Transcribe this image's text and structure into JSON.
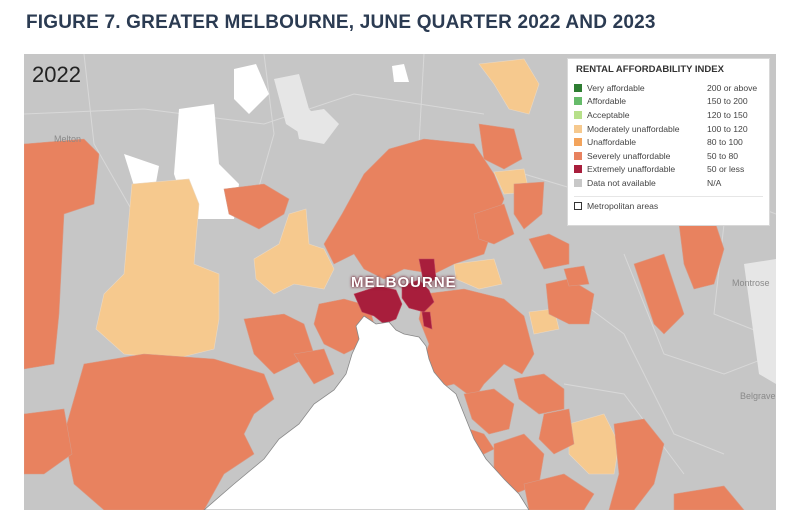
{
  "title": "FIGURE 7. GREATER MELBOURNE, JUNE QUARTER 2022 AND 2023",
  "map": {
    "year": "2022",
    "city_label": "MELBOURNE",
    "place_labels": [
      "Melton",
      "Montrose",
      "Belgrave"
    ]
  },
  "legend": {
    "title": "RENTAL AFFORDABILITY INDEX",
    "items": [
      {
        "label": "Very affordable",
        "range": "200 or above",
        "color": "#2e7d32"
      },
      {
        "label": "Affordable",
        "range": "150 to 200",
        "color": "#66bb6a"
      },
      {
        "label": "Acceptable",
        "range": "120 to 150",
        "color": "#b7e08a"
      },
      {
        "label": "Moderately unaffordable",
        "range": "100 to 120",
        "color": "#f6c98e"
      },
      {
        "label": "Unaffordable",
        "range": "80 to 100",
        "color": "#f3a45c"
      },
      {
        "label": "Severely unaffordable",
        "range": "50 to 80",
        "color": "#e8825f"
      },
      {
        "label": "Extremely unaffordable",
        "range": "50 or less",
        "color": "#a81e3c"
      },
      {
        "label": "Data not available",
        "range": "N/A",
        "color": "#c8c8c8"
      }
    ],
    "metro_label": "Metropolitan areas"
  }
}
